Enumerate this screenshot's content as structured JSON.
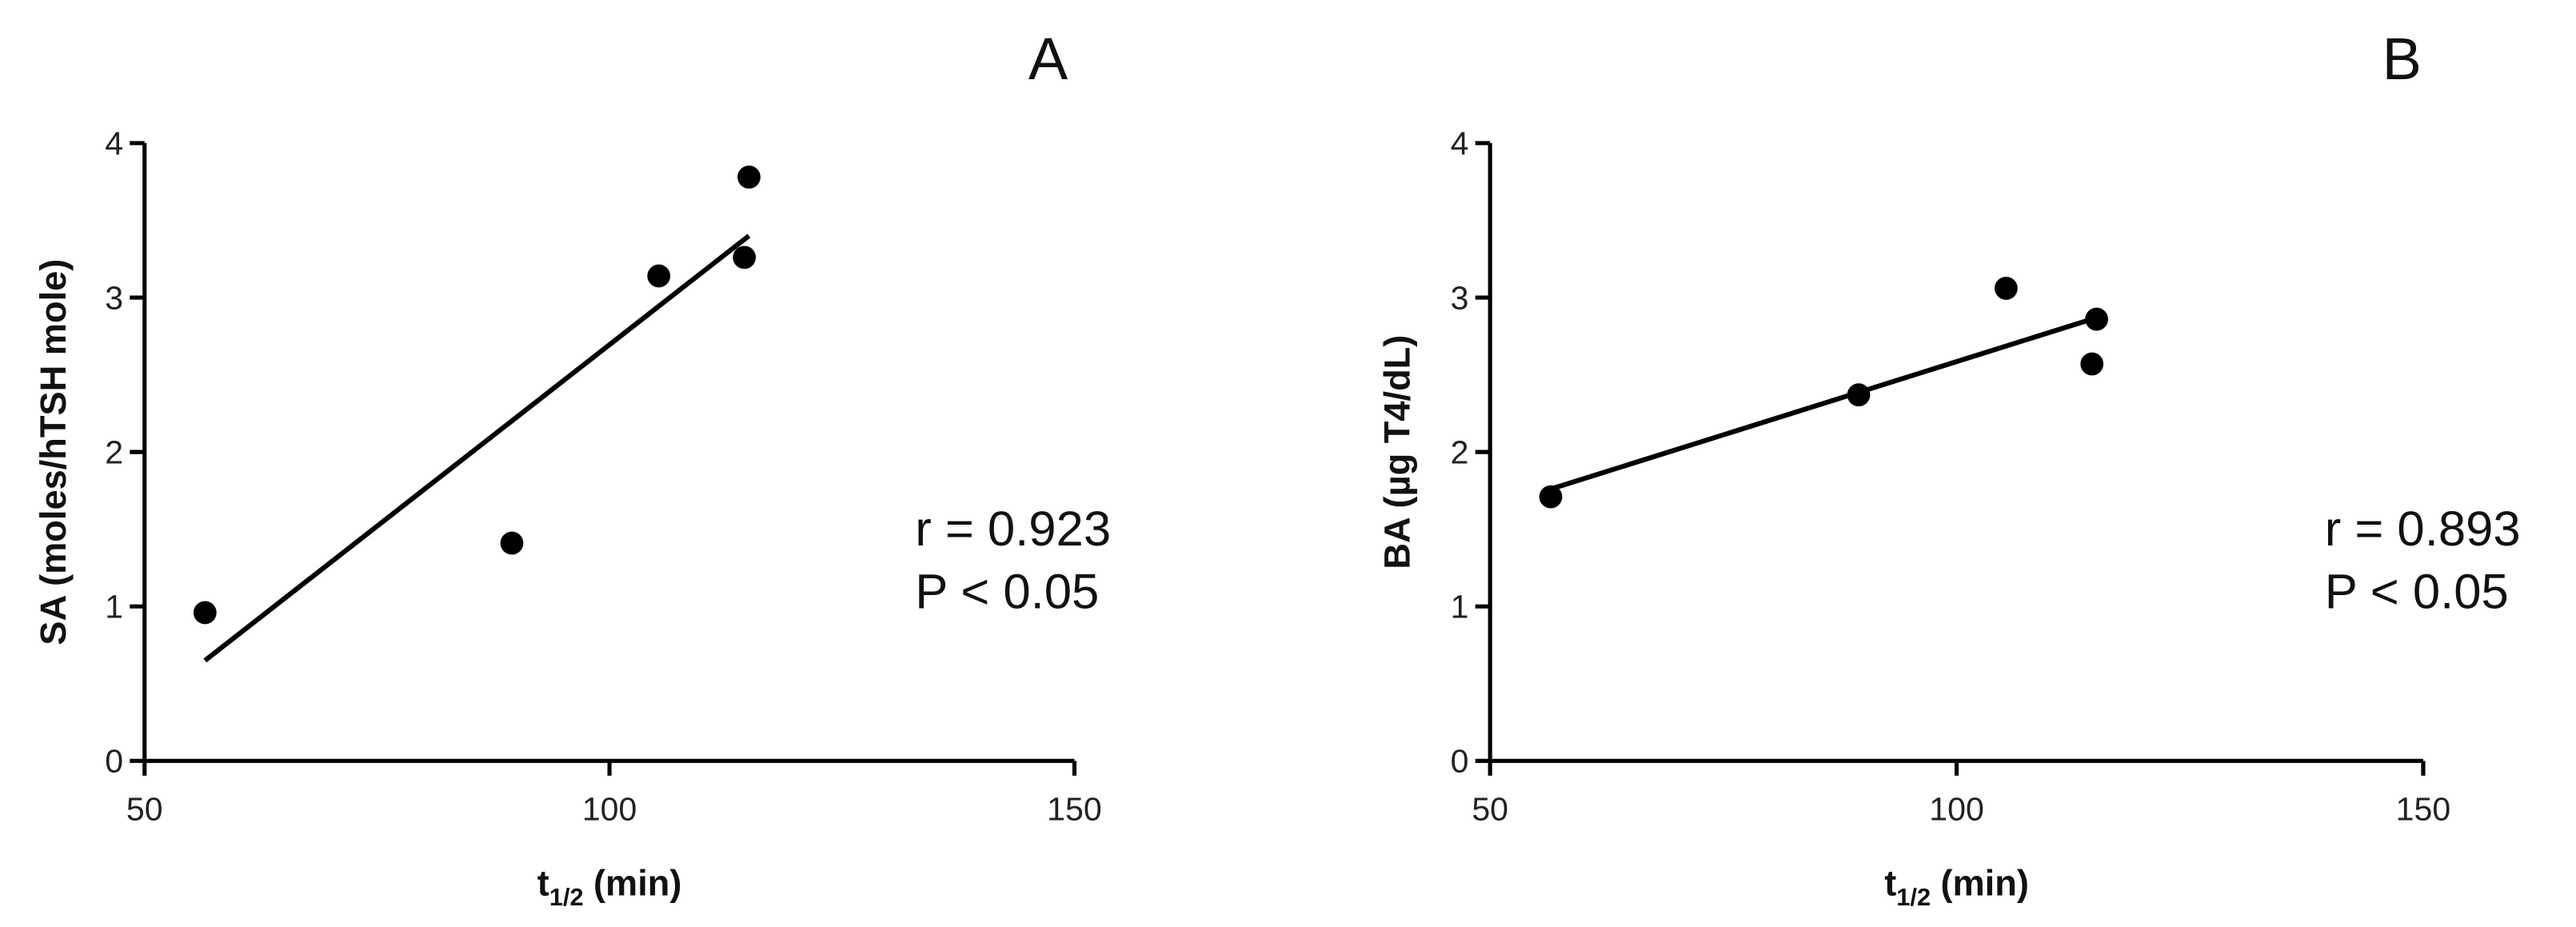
{
  "chart_data": [
    {
      "type": "scatter",
      "panel": "A",
      "xlabel": [
        "t",
        "1/2",
        "(min)"
      ],
      "ylabel": "SA (moles/hTSH mole)",
      "x": [
        56.5,
        89.5,
        105.3,
        114.5,
        115
      ],
      "values": [
        0.96,
        1.41,
        3.14,
        3.26,
        3.78
      ],
      "fit": {
        "x": [
          56.5,
          115
        ],
        "y": [
          0.65,
          3.4
        ]
      },
      "annotations": [
        "r = 0.923",
        "P < 0.05"
      ],
      "xlim": [
        50,
        150
      ],
      "ylim": [
        0,
        4
      ],
      "xticks": [
        50,
        100,
        150
      ],
      "yticks": [
        0,
        1,
        2,
        3,
        4
      ],
      "color": "#000000"
    },
    {
      "type": "scatter",
      "panel": "B",
      "xlabel": [
        "t",
        "1/2",
        "(min)"
      ],
      "ylabel": "BA (µg T4/dL)",
      "x": [
        56.5,
        89.5,
        105.3,
        114.5,
        115
      ],
      "values": [
        1.71,
        2.37,
        3.06,
        2.57,
        2.86
      ],
      "fit": {
        "x": [
          56.5,
          115
        ],
        "y": [
          1.76,
          2.87
        ]
      },
      "annotations": [
        "r = 0.893",
        "P < 0.05"
      ],
      "xlim": [
        50,
        150
      ],
      "ylim": [
        0,
        4
      ],
      "xticks": [
        50,
        100,
        150
      ],
      "yticks": [
        0,
        1,
        2,
        3,
        4
      ],
      "color": "#000000"
    }
  ]
}
